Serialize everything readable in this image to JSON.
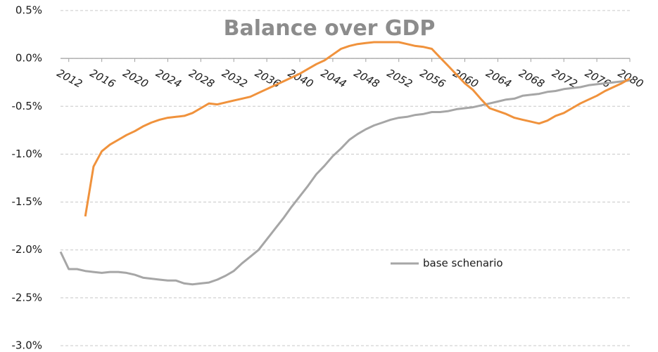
{
  "chart_data": {
    "type": "line",
    "title": "Balance over GDP",
    "x": [
      2011,
      2012,
      2013,
      2014,
      2015,
      2016,
      2017,
      2018,
      2019,
      2020,
      2021,
      2022,
      2023,
      2024,
      2025,
      2026,
      2027,
      2028,
      2029,
      2030,
      2031,
      2032,
      2033,
      2034,
      2035,
      2036,
      2037,
      2038,
      2039,
      2040,
      2041,
      2042,
      2043,
      2044,
      2045,
      2046,
      2047,
      2048,
      2049,
      2050,
      2051,
      2052,
      2053,
      2054,
      2055,
      2056,
      2057,
      2058,
      2059,
      2060,
      2061,
      2062,
      2063,
      2064,
      2065,
      2066,
      2067,
      2068,
      2069,
      2070,
      2071,
      2072,
      2073,
      2074,
      2075,
      2076,
      2077,
      2078,
      2079,
      2080
    ],
    "xlim": [
      2011,
      2080
    ],
    "xticks": [
      2012,
      2016,
      2020,
      2024,
      2028,
      2032,
      2036,
      2040,
      2044,
      2048,
      2052,
      2056,
      2060,
      2064,
      2068,
      2072,
      2076,
      2080
    ],
    "ylim": [
      -3.0,
      0.5
    ],
    "yticks": [
      {
        "value": 0.5,
        "label": "0.5%"
      },
      {
        "value": 0.0,
        "label": "0.0%"
      },
      {
        "value": -0.5,
        "label": "-0.5%"
      },
      {
        "value": -1.0,
        "label": "-1.0%"
      },
      {
        "value": -1.5,
        "label": "-1.5%"
      },
      {
        "value": -2.0,
        "label": "-2.0%"
      },
      {
        "value": -2.5,
        "label": "-2.5%"
      },
      {
        "value": -3.0,
        "label": "-3.0%"
      }
    ],
    "grid": true,
    "series": [
      {
        "name": "base schenario",
        "color": "#a6a6a6",
        "values": [
          -2.02,
          -2.2,
          -2.2,
          -2.22,
          -2.23,
          -2.24,
          -2.23,
          -2.23,
          -2.24,
          -2.26,
          -2.29,
          -2.3,
          -2.31,
          -2.32,
          -2.32,
          -2.35,
          -2.36,
          -2.35,
          -2.34,
          -2.31,
          -2.27,
          -2.22,
          -2.14,
          -2.07,
          -2.0,
          -1.89,
          -1.78,
          -1.67,
          -1.55,
          -1.44,
          -1.33,
          -1.21,
          -1.12,
          -1.02,
          -0.94,
          -0.85,
          -0.79,
          -0.74,
          -0.7,
          -0.67,
          -0.64,
          -0.62,
          -0.61,
          -0.59,
          -0.58,
          -0.56,
          -0.56,
          -0.55,
          -0.53,
          -0.52,
          -0.51,
          -0.49,
          -0.47,
          -0.45,
          -0.43,
          -0.42,
          -0.39,
          -0.38,
          -0.37,
          -0.35,
          -0.34,
          -0.32,
          -0.31,
          -0.3,
          -0.28,
          -0.27,
          -0.26,
          -0.25,
          -0.24,
          -0.23
        ]
      },
      {
        "color": "#f0923c",
        "values": [
          null,
          null,
          null,
          -1.65,
          -1.13,
          -0.97,
          -0.9,
          -0.85,
          -0.8,
          -0.76,
          -0.71,
          -0.67,
          -0.64,
          -0.62,
          -0.61,
          -0.6,
          -0.57,
          -0.52,
          -0.47,
          -0.48,
          -0.46,
          -0.44,
          -0.42,
          -0.4,
          -0.36,
          -0.32,
          -0.28,
          -0.24,
          -0.2,
          -0.16,
          -0.11,
          -0.06,
          -0.02,
          0.04,
          0.1,
          0.13,
          0.15,
          0.16,
          0.17,
          0.17,
          0.17,
          0.17,
          0.15,
          0.13,
          0.12,
          0.1,
          0.01,
          -0.08,
          -0.17,
          -0.26,
          -0.33,
          -0.43,
          -0.52,
          -0.55,
          -0.58,
          -0.62,
          -0.64,
          -0.66,
          -0.68,
          -0.65,
          -0.6,
          -0.57,
          -0.52,
          -0.47,
          -0.43,
          -0.39,
          -0.34,
          -0.3,
          -0.26,
          -0.21
        ]
      }
    ]
  }
}
